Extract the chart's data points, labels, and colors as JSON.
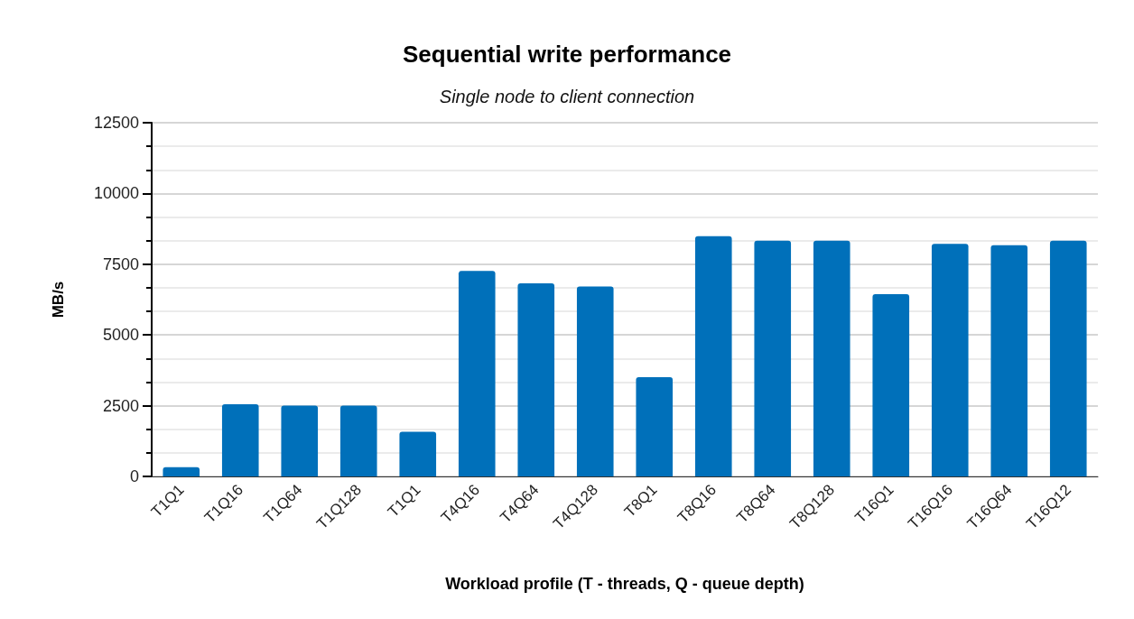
{
  "chart_data": {
    "type": "bar",
    "title": "Sequential write performance",
    "subtitle": "Single node to client connection",
    "xlabel": "Workload profile (T - threads, Q - queue depth)",
    "ylabel": "MB/s",
    "categories": [
      "T1Q1",
      "T1Q16",
      "T1Q64",
      "T1Q128",
      "T1Q1",
      "T4Q16",
      "T4Q64",
      "T4Q128",
      "T8Q1",
      "T8Q16",
      "T8Q64",
      "T8Q128",
      "T16Q1",
      "T16Q16",
      "T16Q64",
      "T16Q12"
    ],
    "values": [
      330,
      2550,
      2500,
      2500,
      1580,
      7260,
      6820,
      6710,
      3510,
      8490,
      8330,
      8330,
      6440,
      8220,
      8170,
      8330
    ],
    "color": "#0070ba",
    "ylim": [
      0,
      12500
    ],
    "yticks": [
      0,
      2500,
      5000,
      7500,
      10000,
      12500
    ],
    "grid": true,
    "legend": false
  }
}
